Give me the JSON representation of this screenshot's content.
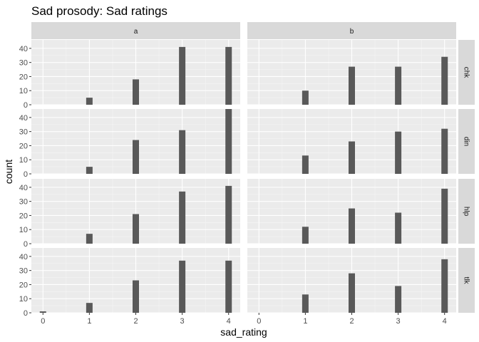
{
  "chart_data": {
    "type": "bar",
    "title": "Sad prosody: Sad ratings",
    "xlabel": "sad_rating",
    "ylabel": "count",
    "x_ticks": [
      0,
      1,
      2,
      3,
      4
    ],
    "y_ticks": [
      0,
      10,
      20,
      30,
      40
    ],
    "xlim": [
      -0.25,
      4.25
    ],
    "ylim": [
      0,
      46
    ],
    "grid": true,
    "column_facets": [
      "a",
      "b"
    ],
    "row_facets": [
      "chk",
      "din",
      "hlp",
      "tlk"
    ],
    "categories": [
      0,
      1,
      2,
      3,
      4
    ],
    "panels": [
      {
        "col": "a",
        "row": "chk",
        "values": [
          0,
          5,
          18,
          41,
          41
        ]
      },
      {
        "col": "b",
        "row": "chk",
        "values": [
          0,
          10,
          27,
          27,
          34
        ]
      },
      {
        "col": "a",
        "row": "din",
        "values": [
          0,
          5,
          24,
          31,
          46
        ]
      },
      {
        "col": "b",
        "row": "din",
        "values": [
          0,
          13,
          23,
          30,
          32
        ]
      },
      {
        "col": "a",
        "row": "hlp",
        "values": [
          0,
          7,
          21,
          37,
          41
        ]
      },
      {
        "col": "b",
        "row": "hlp",
        "values": [
          0,
          12,
          25,
          22,
          39
        ]
      },
      {
        "col": "a",
        "row": "tlk",
        "values": [
          1,
          7,
          23,
          37,
          37
        ]
      },
      {
        "col": "b",
        "row": "tlk",
        "values": [
          0,
          13,
          28,
          19,
          38
        ]
      }
    ],
    "colors": {
      "panel_bg": "#ebebeb",
      "grid_major": "#ffffff",
      "grid_minor": "#f5f5f5",
      "strip_bg": "#d9d9d9",
      "bar_fill": "#595959",
      "text": "#000000",
      "axis_text": "#4d4d4d",
      "strip_text": "#1a1a1a"
    }
  }
}
